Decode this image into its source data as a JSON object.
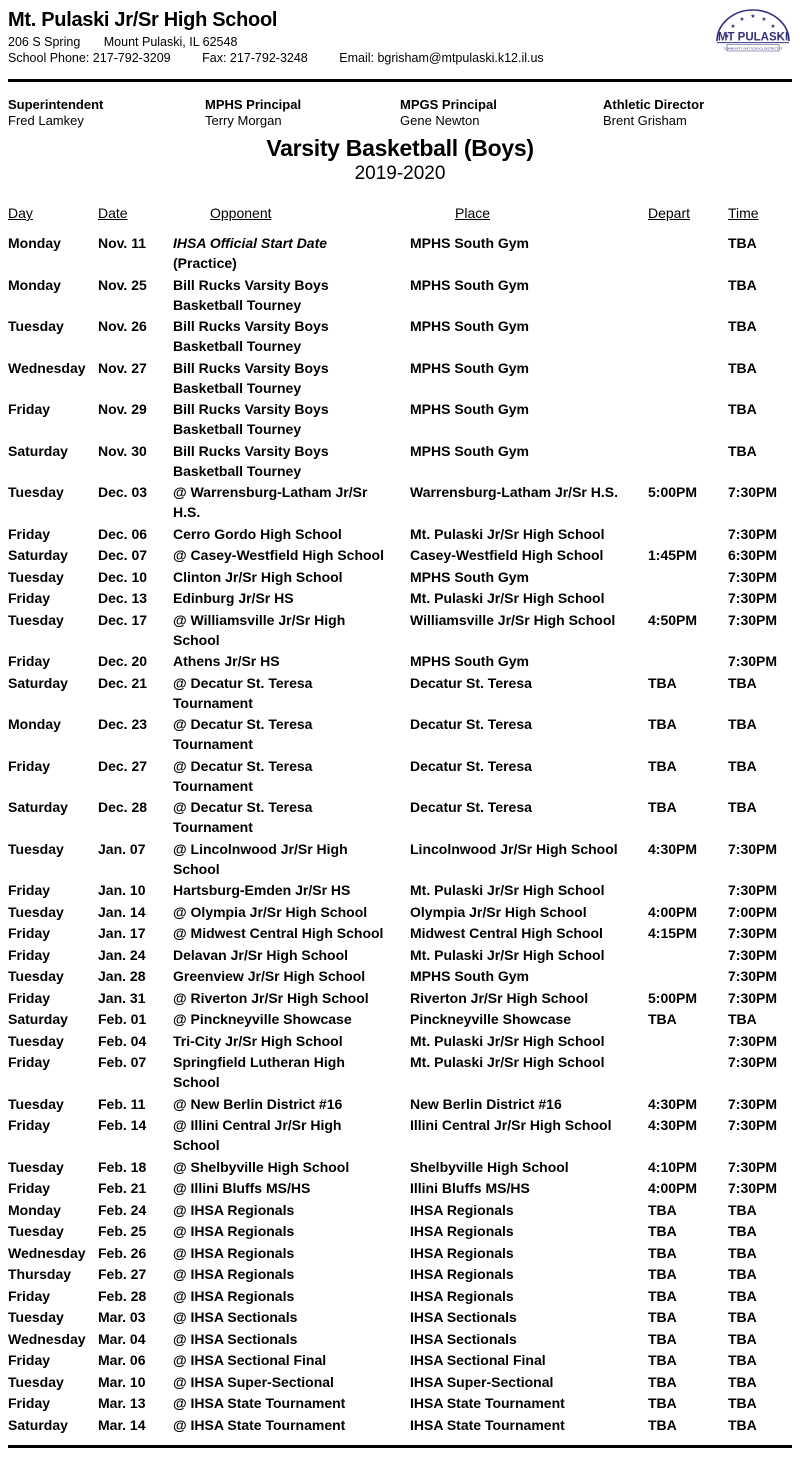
{
  "header": {
    "school_name": "Mt. Pulaski Jr/Sr High School",
    "address": [
      "206 S Spring",
      "Mount Pulaski, IL  62548"
    ],
    "contact": [
      "School Phone: 217-792-3209",
      "Fax: 217-792-3248",
      "Email: bgrisham@mtpulaski.k12.il.us"
    ]
  },
  "logo": {
    "text": "MT PULASKI",
    "subtext": "COMMUNITY UNIT SCHOOL DISTRICT 23",
    "color": "#32327e"
  },
  "staff": [
    {
      "title": "Superintendent",
      "name": "Fred Lamkey"
    },
    {
      "title": "MPHS Principal",
      "name": "Terry Morgan"
    },
    {
      "title": "MPGS Principal",
      "name": "Gene Newton"
    },
    {
      "title": "Athletic Director",
      "name": "Brent Grisham"
    }
  ],
  "title": "Varsity Basketball (Boys)",
  "season": "2019-2020",
  "schedule": {
    "columns": [
      "Day",
      "Date",
      "Opponent",
      "Place",
      "Depart",
      "Time"
    ],
    "rows": [
      {
        "day": "Monday",
        "date": "Nov. 11",
        "opp": "IHSA Official Start Date",
        "italic": true,
        "opp2": "(Practice)",
        "place": "MPHS South Gym",
        "depart": "",
        "time": "TBA"
      },
      {
        "day": "Monday",
        "date": "Nov. 25",
        "opp": "Bill Rucks Varsity Boys",
        "opp2": "Basketball Tourney",
        "place": "MPHS South Gym",
        "depart": "",
        "time": "TBA"
      },
      {
        "day": "Tuesday",
        "date": "Nov. 26",
        "opp": "Bill Rucks Varsity Boys",
        "opp2": "Basketball Tourney",
        "place": "MPHS South Gym",
        "depart": "",
        "time": "TBA"
      },
      {
        "day": "Wednesday",
        "date": "Nov. 27",
        "opp": "Bill Rucks Varsity Boys",
        "opp2": "Basketball Tourney",
        "place": "MPHS South Gym",
        "depart": "",
        "time": "TBA"
      },
      {
        "day": "Friday",
        "date": "Nov. 29",
        "opp": "Bill Rucks Varsity Boys",
        "opp2": "Basketball Tourney",
        "place": "MPHS South Gym",
        "depart": "",
        "time": "TBA"
      },
      {
        "day": "Saturday",
        "date": "Nov. 30",
        "opp": "Bill Rucks Varsity Boys",
        "opp2": "Basketball Tourney",
        "place": "MPHS South Gym",
        "depart": "",
        "time": "TBA"
      },
      {
        "day": "Tuesday",
        "date": "Dec. 03",
        "opp": "@ Warrensburg-Latham Jr/Sr",
        "opp2": "H.S.",
        "place": "Warrensburg-Latham Jr/Sr H.S.",
        "depart": "5:00PM",
        "time": "7:30PM"
      },
      {
        "day": "Friday",
        "date": "Dec. 06",
        "opp": "Cerro Gordo High School",
        "place": "Mt. Pulaski Jr/Sr High School",
        "depart": "",
        "time": "7:30PM"
      },
      {
        "day": "Saturday",
        "date": "Dec. 07",
        "opp": "@ Casey-Westfield High School",
        "place": "Casey-Westfield High School",
        "depart": "1:45PM",
        "time": "6:30PM"
      },
      {
        "day": "Tuesday",
        "date": "Dec. 10",
        "opp": "Clinton Jr/Sr High School",
        "place": "MPHS South Gym",
        "depart": "",
        "time": "7:30PM"
      },
      {
        "day": "Friday",
        "date": "Dec. 13",
        "opp": "Edinburg Jr/Sr HS",
        "place": "Mt. Pulaski Jr/Sr High School",
        "depart": "",
        "time": "7:30PM"
      },
      {
        "day": "Tuesday",
        "date": "Dec. 17",
        "opp": "@ Williamsville Jr/Sr High",
        "opp2": "School",
        "place": "Williamsville Jr/Sr High School",
        "depart": "4:50PM",
        "time": "7:30PM"
      },
      {
        "day": "Friday",
        "date": "Dec. 20",
        "opp": "Athens Jr/Sr HS",
        "place": "MPHS South Gym",
        "depart": "",
        "time": "7:30PM"
      },
      {
        "day": "Saturday",
        "date": "Dec. 21",
        "opp": "@ Decatur St. Teresa",
        "opp2": "Tournament",
        "place": "Decatur St. Teresa",
        "depart": "TBA",
        "time": "TBA"
      },
      {
        "day": "Monday",
        "date": "Dec. 23",
        "opp": "@ Decatur St. Teresa",
        "opp2": "Tournament",
        "place": "Decatur St. Teresa",
        "depart": "TBA",
        "time": "TBA"
      },
      {
        "day": "Friday",
        "date": "Dec. 27",
        "opp": "@ Decatur St. Teresa",
        "opp2": "Tournament",
        "place": "Decatur St. Teresa",
        "depart": "TBA",
        "time": "TBA"
      },
      {
        "day": "Saturday",
        "date": "Dec. 28",
        "opp": "@ Decatur St. Teresa",
        "opp2": "Tournament",
        "place": "Decatur St. Teresa",
        "depart": "TBA",
        "time": "TBA"
      },
      {
        "day": "Tuesday",
        "date": "Jan. 07",
        "opp": "@ Lincolnwood Jr/Sr High",
        "opp2": "School",
        "place": "Lincolnwood Jr/Sr High School",
        "depart": "4:30PM",
        "time": "7:30PM"
      },
      {
        "day": "Friday",
        "date": "Jan. 10",
        "opp": "Hartsburg-Emden Jr/Sr HS",
        "place": "Mt. Pulaski Jr/Sr High School",
        "depart": "",
        "time": "7:30PM"
      },
      {
        "day": "Tuesday",
        "date": "Jan. 14",
        "opp": "@ Olympia Jr/Sr High School",
        "place": "Olympia Jr/Sr High School",
        "depart": "4:00PM",
        "time": "7:00PM"
      },
      {
        "day": "Friday",
        "date": "Jan. 17",
        "opp": "@ Midwest Central High School",
        "place": "Midwest Central High School",
        "depart": "4:15PM",
        "time": "7:30PM"
      },
      {
        "day": "Friday",
        "date": "Jan. 24",
        "opp": "Delavan Jr/Sr High School",
        "place": "Mt. Pulaski Jr/Sr High School",
        "depart": "",
        "time": "7:30PM"
      },
      {
        "day": "Tuesday",
        "date": "Jan. 28",
        "opp": "Greenview Jr/Sr High School",
        "place": "MPHS South Gym",
        "depart": "",
        "time": "7:30PM"
      },
      {
        "day": "Friday",
        "date": "Jan. 31",
        "opp": "@ Riverton Jr/Sr High School",
        "place": "Riverton Jr/Sr High School",
        "depart": "5:00PM",
        "time": "7:30PM"
      },
      {
        "day": "Saturday",
        "date": "Feb. 01",
        "opp": "@ Pinckneyville Showcase",
        "place": "Pinckneyville Showcase",
        "depart": "TBA",
        "time": "TBA"
      },
      {
        "day": "Tuesday",
        "date": "Feb. 04",
        "opp": "Tri-City Jr/Sr High School",
        "place": "Mt. Pulaski Jr/Sr High School",
        "depart": "",
        "time": "7:30PM"
      },
      {
        "day": "Friday",
        "date": "Feb. 07",
        "opp": "Springfield Lutheran High",
        "opp2": "School",
        "place": "Mt. Pulaski Jr/Sr High School",
        "depart": "",
        "time": "7:30PM"
      },
      {
        "day": "Tuesday",
        "date": "Feb. 11",
        "opp": "@ New Berlin District #16",
        "place": "New Berlin District #16",
        "depart": "4:30PM",
        "time": "7:30PM"
      },
      {
        "day": "Friday",
        "date": "Feb. 14",
        "opp": "@ Illini Central Jr/Sr High",
        "opp2": "School",
        "place": "Illini Central Jr/Sr High School",
        "depart": "4:30PM",
        "time": "7:30PM"
      },
      {
        "day": "Tuesday",
        "date": "Feb. 18",
        "opp": "@ Shelbyville High School",
        "place": "Shelbyville High School",
        "depart": "4:10PM",
        "time": "7:30PM"
      },
      {
        "day": "Friday",
        "date": "Feb. 21",
        "opp": "@ Illini Bluffs MS/HS",
        "place": "Illini Bluffs MS/HS",
        "depart": "4:00PM",
        "time": "7:30PM"
      },
      {
        "day": "Monday",
        "date": "Feb. 24",
        "opp": "@ IHSA Regionals",
        "place": "IHSA Regionals",
        "depart": "TBA",
        "time": "TBA"
      },
      {
        "day": "Tuesday",
        "date": "Feb. 25",
        "opp": "@ IHSA Regionals",
        "place": "IHSA Regionals",
        "depart": "TBA",
        "time": "TBA"
      },
      {
        "day": "Wednesday",
        "date": "Feb. 26",
        "opp": "@ IHSA Regionals",
        "place": "IHSA Regionals",
        "depart": "TBA",
        "time": "TBA"
      },
      {
        "day": "Thursday",
        "date": "Feb. 27",
        "opp": "@ IHSA Regionals",
        "place": "IHSA Regionals",
        "depart": "TBA",
        "time": "TBA"
      },
      {
        "day": "Friday",
        "date": "Feb. 28",
        "opp": "@ IHSA Regionals",
        "place": "IHSA Regionals",
        "depart": "TBA",
        "time": "TBA"
      },
      {
        "day": "Tuesday",
        "date": "Mar. 03",
        "opp": "@ IHSA Sectionals",
        "place": "IHSA Sectionals",
        "depart": "TBA",
        "time": "TBA"
      },
      {
        "day": "Wednesday",
        "date": "Mar. 04",
        "opp": "@ IHSA Sectionals",
        "place": "IHSA Sectionals",
        "depart": "TBA",
        "time": "TBA"
      },
      {
        "day": "Friday",
        "date": "Mar. 06",
        "opp": "@ IHSA Sectional Final",
        "place": "IHSA Sectional Final",
        "depart": "TBA",
        "time": "TBA"
      },
      {
        "day": "Tuesday",
        "date": "Mar. 10",
        "opp": "@ IHSA Super-Sectional",
        "place": "IHSA Super-Sectional",
        "depart": "TBA",
        "time": "TBA"
      },
      {
        "day": "Friday",
        "date": "Mar. 13",
        "opp": "@ IHSA State Tournament",
        "place": "IHSA State Tournament",
        "depart": "TBA",
        "time": "TBA"
      },
      {
        "day": "Saturday",
        "date": "Mar. 14",
        "opp": "@ IHSA State Tournament",
        "place": "IHSA State Tournament",
        "depart": "TBA",
        "time": "TBA"
      }
    ]
  }
}
